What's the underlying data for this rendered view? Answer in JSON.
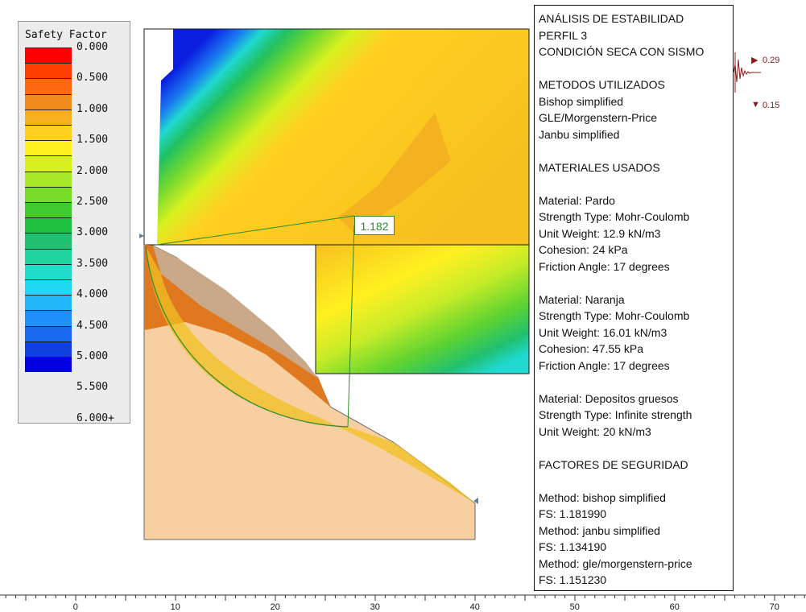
{
  "legend": {
    "title": "Safety Factor",
    "bands": [
      {
        "color": "#ff0000"
      },
      {
        "color": "#ff4000"
      },
      {
        "color": "#ff6a10"
      },
      {
        "color": "#f08c20"
      },
      {
        "color": "#f7b020"
      },
      {
        "color": "#ffd020"
      },
      {
        "color": "#fff020"
      },
      {
        "color": "#d8f020"
      },
      {
        "color": "#a8e828"
      },
      {
        "color": "#78dc28"
      },
      {
        "color": "#40cc30"
      },
      {
        "color": "#20c040"
      },
      {
        "color": "#20c070"
      },
      {
        "color": "#20d4a0"
      },
      {
        "color": "#20dcc8"
      },
      {
        "color": "#20d8f0"
      },
      {
        "color": "#20b8f8"
      },
      {
        "color": "#2090f8"
      },
      {
        "color": "#1868f0"
      },
      {
        "color": "#1040e0"
      },
      {
        "color": "#0000e0"
      }
    ],
    "labels": [
      "0.000",
      "0.500",
      "1.000",
      "1.500",
      "2.000",
      "2.500",
      "3.000",
      "3.500",
      "4.000",
      "4.500",
      "5.000",
      "5.500",
      "6.000+"
    ]
  },
  "critical_surface": {
    "fs_label": "1.182"
  },
  "info_panel": {
    "lines": [
      "ANÁLISIS DE ESTABILIDAD",
      "PERFIL 3",
      "CONDICIÓN SECA CON SISMO",
      "",
      "METODOS UTILIZADOS",
      "Bishop simplified",
      "GLE/Morgenstern-Price",
      "Janbu simplified",
      "",
      "MATERIALES USADOS",
      "",
      "Material: Pardo",
      "Strength Type: Mohr-Coulomb",
      "Unit Weight: 12.9 kN/m3",
      "Cohesion: 24 kPa",
      "Friction Angle: 17 degrees",
      "",
      "Material: Naranja",
      "Strength Type: Mohr-Coulomb",
      "Unit Weight: 16.01 kN/m3",
      "Cohesion: 47.55 kPa",
      "Friction Angle: 17 degrees",
      "",
      "Material: Depositos gruesos",
      "Strength Type: Infinite strength",
      "Unit Weight: 20 kN/m3",
      "",
      "FACTORES DE SEGURIDAD",
      "",
      "Method: bishop simplified",
      "FS: 1.181990",
      "Method: janbu simplified",
      "FS: 1.134190",
      "Method: gle/morgenstern-price",
      "FS: 1.151230"
    ]
  },
  "seismic": {
    "horizontal": "0.29",
    "vertical": "0.15",
    "color": "#8b1a1a"
  },
  "ruler": {
    "labels": [
      "0",
      "10",
      "20",
      "30",
      "40",
      "50",
      "60",
      "70"
    ]
  },
  "colors": {
    "slide_line": "#2e8b2e",
    "pardo": "#c9a98a",
    "naranja": "#e07820",
    "depositos": "#f7cfa0",
    "slip_yellow": "#f0c020"
  }
}
